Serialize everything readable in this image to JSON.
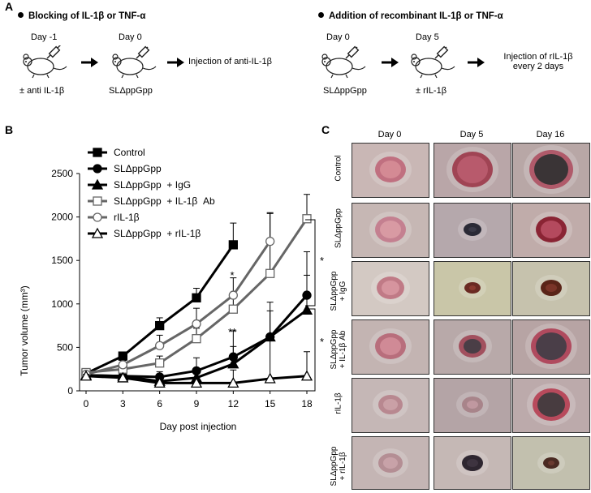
{
  "panel_a": {
    "label": "A",
    "left_heading": "Blocking of IL-1β or TNF-α",
    "right_heading": "Addition of recombinant IL-1β or TNF-α",
    "left_steps": [
      {
        "day": "Day -1",
        "below": "± anti IL-1β"
      },
      {
        "day": "Day 0",
        "below": "SLΔppGpp"
      }
    ],
    "left_result": "Injection of anti-IL-1β",
    "right_steps": [
      {
        "day": "Day 0",
        "below": "SLΔppGpp"
      },
      {
        "day": "Day 5",
        "below": "± rIL-1β"
      }
    ],
    "right_result_line1": "Injection of rIL-1β",
    "right_result_line2": "every 2 days"
  },
  "panel_b": {
    "label": "B",
    "sig_upper": "*",
    "sig_lower": "**",
    "bracket_upper": "*",
    "bracket_lower": "*"
  },
  "panel_c": {
    "label": "C",
    "columns": [
      "Day 0",
      "Day 5",
      "Day 16"
    ],
    "rows": [
      {
        "line1": "Control",
        "line2": ""
      },
      {
        "line1": "SLΔppGpp",
        "line2": ""
      },
      {
        "line1": "SLΔppGpp",
        "line2": "+ IgG"
      },
      {
        "line1": "SLΔppGpp",
        "line2": "+ IL-1β Ab"
      },
      {
        "line1": "rIL-1β",
        "line2": ""
      },
      {
        "line1": "SLΔppGpp",
        "line2": "+ rIL-1β"
      }
    ]
  },
  "chart_data": {
    "type": "line",
    "title": "",
    "xlabel": "Day post injection",
    "ylabel": "Tumor volume (mm³)",
    "x": [
      0,
      3,
      6,
      9,
      12,
      15,
      18
    ],
    "xlim": [
      0,
      18
    ],
    "ylim": [
      0,
      2500
    ],
    "yticks": [
      0,
      500,
      1000,
      1500,
      2000,
      2500
    ],
    "legend_position": "top-left",
    "series": [
      {
        "name": "Control",
        "marker": "square-filled",
        "color": "#000000",
        "values": [
          200,
          400,
          750,
          1070,
          1680,
          null,
          null
        ],
        "errors": [
          30,
          40,
          90,
          110,
          250,
          null,
          null
        ]
      },
      {
        "name": "SLΔppGpp",
        "marker": "circle-filled",
        "color": "#000000",
        "values": [
          180,
          170,
          160,
          230,
          390,
          620,
          1100
        ],
        "errors": [
          30,
          40,
          60,
          150,
          300,
          400,
          500
        ]
      },
      {
        "name": "SLΔppGpp  + IgG",
        "marker": "triangle-filled",
        "color": "#000000",
        "values": [
          180,
          170,
          110,
          150,
          310,
          620,
          930
        ],
        "errors": [
          20,
          30,
          50,
          100,
          200,
          300,
          400
        ]
      },
      {
        "name": "SLΔppGpp  + IL-1β  Ab",
        "marker": "square-open",
        "color": "#666666",
        "values": [
          210,
          250,
          320,
          600,
          940,
          1350,
          1980
        ],
        "errors": [
          30,
          40,
          80,
          120,
          150,
          700,
          280
        ]
      },
      {
        "name": "rIL-1β",
        "marker": "circle-open",
        "color": "#666666",
        "values": [
          190,
          300,
          520,
          770,
          1100,
          1720,
          null
        ],
        "errors": [
          30,
          50,
          120,
          180,
          200,
          320,
          null
        ]
      },
      {
        "name": "SLΔppGpp  + rIL-1β",
        "marker": "triangle-open",
        "color": "#000000",
        "values": [
          170,
          150,
          90,
          90,
          90,
          140,
          170
        ],
        "errors": [
          20,
          30,
          40,
          60,
          150,
          450,
          280
        ]
      }
    ]
  }
}
